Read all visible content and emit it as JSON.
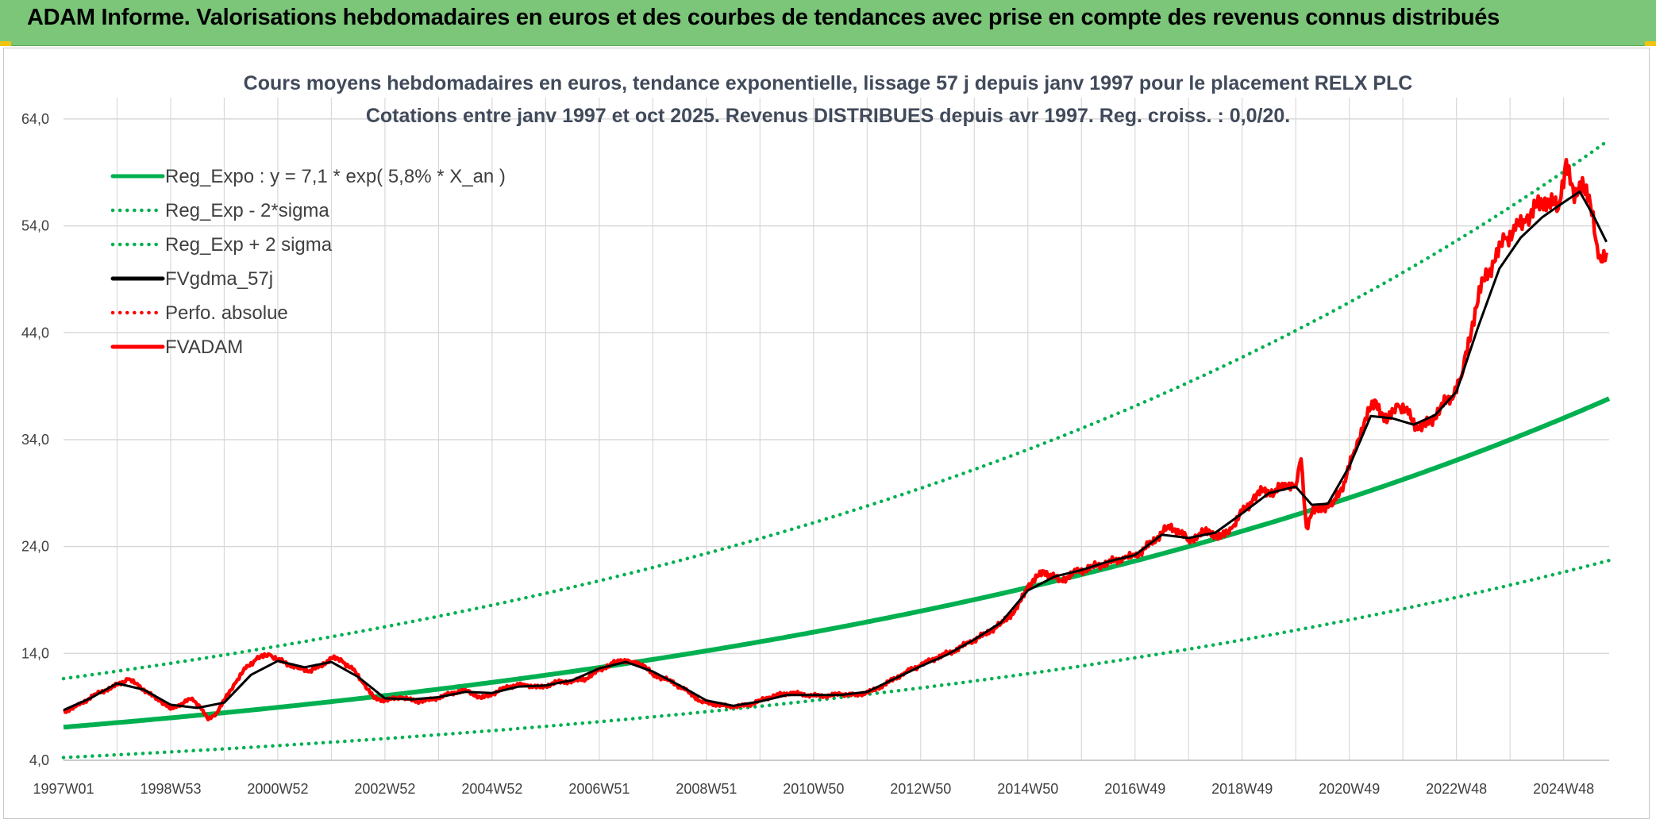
{
  "banner": {
    "title": "ADAM Informe. Valorisations hebdomadaires en euros et des courbes de tendances avec prise en compte des revenus connus distribués"
  },
  "colors": {
    "banner_bg": "#7cc67a",
    "reg_green": "#00b050",
    "red": "#ff0000",
    "black": "#000000",
    "grid": "#d9d9d9",
    "accent_yellow": "#f1c40f"
  },
  "chart_data": {
    "type": "line",
    "title": "Cours moyens hebdomadaires en euros, tendance exponentielle, lissage 57 j depuis janv 1997 pour le placement RELX PLC",
    "subtitle": "Cotations entre janv 1997 et oct 2025. Revenus DISTRIBUES depuis avr 1997. Reg. croiss. : 0,0/20.",
    "xlabel": "",
    "ylabel": "",
    "x_range": [
      1997.0,
      2025.85
    ],
    "ylim": [
      4.0,
      66.0
    ],
    "y_ticks": [
      "4,0",
      "14,0",
      "24,0",
      "34,0",
      "44,0",
      "54,0",
      "64,0"
    ],
    "y_tick_values": [
      4,
      14,
      24,
      34,
      44,
      54,
      64
    ],
    "x_tick_labels": [
      "1997W01",
      "1998W53",
      "2000W52",
      "2002W52",
      "2004W52",
      "2006W51",
      "2008W51",
      "2010W50",
      "2012W50",
      "2014W50",
      "2016W49",
      "2018W49",
      "2020W49",
      "2022W48",
      "2024W48"
    ],
    "x_tick_values": [
      1997.0,
      1999.0,
      2001.0,
      2003.0,
      2005.0,
      2007.0,
      2009.0,
      2011.0,
      2013.0,
      2015.0,
      2017.0,
      2019.0,
      2021.0,
      2023.0,
      2025.0
    ],
    "grid": true,
    "legend_position": "top-left",
    "legend": [
      {
        "key": "reg",
        "label": "Reg_Expo : y = 7,1 * exp( 5,8% *  X_an )",
        "color": "#00b050",
        "style": "solid"
      },
      {
        "key": "low",
        "label": "Reg_Exp - 2*sigma",
        "color": "#00b050",
        "style": "dotted"
      },
      {
        "key": "high",
        "label": "Reg_Exp + 2 sigma",
        "color": "#00b050",
        "style": "dotted"
      },
      {
        "key": "ma",
        "label": "FVgdma_57j",
        "color": "#000000",
        "style": "solid"
      },
      {
        "key": "perf",
        "label": "Perfo. absolue",
        "color": "#ff0000",
        "style": "dotted"
      },
      {
        "key": "adam",
        "label": "FVADAM",
        "color": "#ff0000",
        "style": "solid"
      }
    ],
    "regression": {
      "a": 7.1,
      "rate": 0.058,
      "x0": 1997.0,
      "sigma_low_factor": 0.6,
      "sigma_high_factor": 1.64
    },
    "series": [
      {
        "name": "FVADAM",
        "x": [
          1997.0,
          1997.3,
          1997.6,
          1997.9,
          1998.2,
          1998.4,
          1998.6,
          1998.8,
          1999.0,
          1999.2,
          1999.4,
          1999.55,
          1999.7,
          1999.85,
          2000.0,
          2000.2,
          2000.4,
          2000.6,
          2000.85,
          2001.0,
          2001.2,
          2001.4,
          2001.6,
          2001.8,
          2002.0,
          2002.2,
          2002.4,
          2002.6,
          2002.8,
          2003.0,
          2003.3,
          2003.6,
          2003.9,
          2004.2,
          2004.5,
          2004.8,
          2005.0,
          2005.3,
          2005.6,
          2005.9,
          2006.2,
          2006.5,
          2006.8,
          2007.0,
          2007.2,
          2007.4,
          2007.6,
          2007.8,
          2008.0,
          2008.3,
          2008.6,
          2008.9,
          2009.2,
          2009.5,
          2009.8,
          2010.0,
          2010.3,
          2010.6,
          2010.9,
          2011.2,
          2011.5,
          2011.8,
          2012.1,
          2012.4,
          2012.7,
          2013.0,
          2013.3,
          2013.6,
          2013.9,
          2014.2,
          2014.5,
          2014.8,
          2015.0,
          2015.3,
          2015.6,
          2015.9,
          2016.2,
          2016.5,
          2016.8,
          2017.0,
          2017.3,
          2017.6,
          2017.8,
          2018.0,
          2018.2,
          2018.4,
          2018.6,
          2018.8,
          2019.0,
          2019.2,
          2019.4,
          2019.6,
          2019.8,
          2020.0,
          2020.1,
          2020.2,
          2020.3,
          2020.5,
          2020.7,
          2020.9,
          2021.1,
          2021.3,
          2021.5,
          2021.7,
          2021.9,
          2022.1,
          2022.3,
          2022.5,
          2022.7,
          2022.9,
          2023.1,
          2023.3,
          2023.5,
          2023.7,
          2023.9,
          2024.1,
          2024.3,
          2024.5,
          2024.7,
          2024.9,
          2025.05,
          2025.2,
          2025.35,
          2025.5,
          2025.65,
          2025.8
        ],
        "values": [
          8.5,
          9.2,
          10.2,
          10.8,
          11.6,
          11.0,
          10.2,
          9.6,
          8.8,
          9.3,
          9.8,
          9.0,
          7.8,
          8.4,
          9.6,
          11.2,
          12.6,
          13.5,
          13.9,
          13.4,
          13.0,
          12.6,
          12.4,
          12.8,
          13.6,
          13.3,
          12.5,
          11.2,
          9.8,
          9.6,
          9.9,
          9.5,
          9.7,
          10.2,
          10.6,
          9.8,
          10.2,
          10.9,
          11.1,
          10.8,
          11.3,
          11.4,
          11.7,
          12.5,
          12.9,
          13.4,
          13.2,
          13.0,
          12.0,
          11.5,
          10.6,
          9.5,
          9.2,
          9.0,
          9.2,
          9.6,
          10.1,
          10.3,
          10.1,
          10.0,
          10.2,
          10.1,
          10.5,
          11.3,
          12.2,
          12.9,
          13.6,
          14.2,
          15.0,
          15.8,
          16.8,
          18.2,
          20.3,
          21.7,
          20.8,
          21.6,
          22.1,
          22.5,
          22.9,
          23.1,
          24.3,
          25.8,
          25.6,
          24.5,
          25.2,
          25.4,
          24.8,
          25.7,
          27.2,
          28.4,
          29.3,
          29.0,
          29.9,
          29.6,
          32.2,
          25.8,
          27.1,
          27.7,
          28.0,
          30.0,
          33.0,
          36.0,
          37.6,
          35.6,
          37.3,
          36.4,
          35.0,
          35.6,
          37.0,
          38.0,
          40.0,
          45.0,
          49.0,
          50.6,
          52.8,
          53.6,
          54.6,
          55.8,
          56.5,
          55.6,
          60.2,
          56.2,
          58.5,
          56.0,
          51.0,
          51.5
        ],
        "color": "#ff0000"
      },
      {
        "name": "FVgdma_57j",
        "x": [
          1997.0,
          1997.5,
          1998.0,
          1998.5,
          1999.0,
          1999.5,
          2000.0,
          2000.5,
          2001.0,
          2001.5,
          2002.0,
          2002.5,
          2003.0,
          2003.5,
          2004.0,
          2004.5,
          2005.0,
          2005.5,
          2006.0,
          2006.5,
          2007.0,
          2007.5,
          2008.0,
          2008.5,
          2009.0,
          2009.5,
          2010.0,
          2010.5,
          2011.0,
          2011.5,
          2012.0,
          2012.5,
          2013.0,
          2013.5,
          2014.0,
          2014.5,
          2015.0,
          2015.5,
          2016.0,
          2016.5,
          2017.0,
          2017.5,
          2018.0,
          2018.5,
          2019.0,
          2019.5,
          2020.0,
          2020.3,
          2020.6,
          2021.0,
          2021.4,
          2021.8,
          2022.2,
          2022.6,
          2023.0,
          2023.4,
          2023.8,
          2024.2,
          2024.6,
          2025.0,
          2025.3,
          2025.55,
          2025.8
        ],
        "values": [
          8.7,
          9.8,
          11.2,
          10.6,
          9.2,
          8.9,
          9.4,
          12.0,
          13.3,
          12.7,
          13.2,
          11.8,
          9.8,
          9.7,
          9.9,
          10.4,
          10.3,
          10.9,
          11.0,
          11.5,
          12.6,
          13.2,
          12.3,
          11.0,
          9.6,
          9.1,
          9.5,
          10.1,
          10.1,
          10.1,
          10.4,
          11.6,
          12.8,
          13.9,
          15.3,
          16.9,
          19.9,
          21.2,
          21.8,
          22.6,
          23.2,
          25.1,
          24.8,
          25.3,
          27.1,
          29.0,
          29.6,
          27.9,
          28.0,
          31.5,
          36.2,
          36.0,
          35.4,
          36.3,
          38.5,
          44.5,
          50.0,
          52.9,
          54.8,
          56.2,
          57.2,
          55.0,
          52.5
        ],
        "color": "#000000"
      }
    ]
  }
}
